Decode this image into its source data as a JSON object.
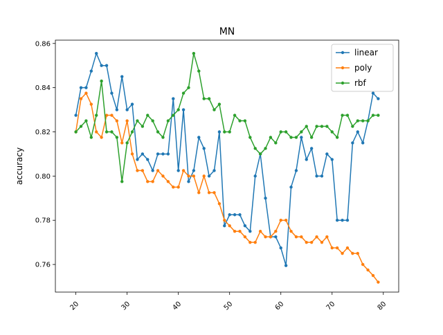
{
  "chart_data": {
    "type": "line",
    "title": "MN",
    "xlabel": "",
    "ylabel": "accuracy",
    "xlim": [
      16,
      83
    ],
    "ylim": [
      0.7475,
      0.8615
    ],
    "x_ticks": [
      20,
      30,
      40,
      50,
      60,
      70,
      80
    ],
    "y_ticks": [
      0.76,
      0.78,
      0.8,
      0.82,
      0.84,
      0.86
    ],
    "x_tick_labels": [
      "20",
      "30",
      "40",
      "50",
      "60",
      "70",
      "80"
    ],
    "y_tick_labels": [
      "0.76",
      "0.78",
      "0.80",
      "0.82",
      "0.84",
      "0.86"
    ],
    "x_tick_rotation": 45,
    "grid": false,
    "legend_position": "top-right",
    "x": [
      20,
      21,
      22,
      23,
      24,
      25,
      26,
      27,
      28,
      29,
      30,
      31,
      32,
      33,
      34,
      35,
      36,
      37,
      38,
      39,
      40,
      41,
      42,
      43,
      44,
      45,
      46,
      47,
      48,
      49,
      50,
      51,
      52,
      53,
      54,
      55,
      56,
      57,
      58,
      59,
      60,
      61,
      62,
      63,
      64,
      65,
      66,
      67,
      68,
      69,
      70,
      71,
      72,
      73,
      74,
      75,
      76,
      77,
      78,
      79
    ],
    "series": [
      {
        "name": "linear",
        "color": "#1f77b4",
        "values": [
          0.8275,
          0.84,
          0.84,
          0.8475,
          0.8555,
          0.85,
          0.85,
          0.8375,
          0.83,
          0.845,
          0.83,
          0.8325,
          0.8075,
          0.81,
          0.8075,
          0.8025,
          0.81,
          0.81,
          0.81,
          0.835,
          0.8025,
          0.83,
          0.7975,
          0.8025,
          0.8175,
          0.8125,
          0.8,
          0.8025,
          0.82,
          0.7775,
          0.7825,
          0.7825,
          0.7825,
          0.7775,
          0.775,
          0.8,
          0.81,
          0.79,
          0.7725,
          0.7725,
          0.7675,
          0.7595,
          0.795,
          0.8025,
          0.8175,
          0.8075,
          0.8125,
          0.8,
          0.8,
          0.81,
          0.8075,
          0.78,
          0.78,
          0.78,
          0.815,
          0.82,
          0.815,
          0.825,
          0.8375,
          0.835
        ]
      },
      {
        "name": "poly",
        "color": "#ff7f0e",
        "values": [
          0.82,
          0.835,
          0.8375,
          0.8325,
          0.82,
          0.8175,
          0.8275,
          0.8275,
          0.825,
          0.815,
          0.825,
          0.81,
          0.8025,
          0.8025,
          0.7975,
          0.7975,
          0.8025,
          0.8,
          0.7975,
          0.795,
          0.795,
          0.8025,
          0.8,
          0.8,
          0.7925,
          0.8,
          0.7925,
          0.7925,
          0.7875,
          0.78,
          0.7775,
          0.775,
          0.775,
          0.7725,
          0.77,
          0.77,
          0.775,
          0.7725,
          0.7725,
          0.775,
          0.78,
          0.78,
          0.775,
          0.7725,
          0.7725,
          0.77,
          0.77,
          0.7725,
          0.77,
          0.7725,
          0.7675,
          0.7675,
          0.765,
          0.7675,
          0.765,
          0.765,
          0.76,
          0.7575,
          0.755,
          0.752
        ]
      },
      {
        "name": "rbf",
        "color": "#2ca02c",
        "values": [
          0.82,
          0.8225,
          0.825,
          0.8175,
          0.8275,
          0.843,
          0.82,
          0.82,
          0.8175,
          0.7975,
          0.815,
          0.82,
          0.825,
          0.8225,
          0.8275,
          0.825,
          0.82,
          0.8175,
          0.825,
          0.8275,
          0.83,
          0.8375,
          0.84,
          0.8555,
          0.8475,
          0.835,
          0.835,
          0.83,
          0.8325,
          0.82,
          0.82,
          0.8275,
          0.825,
          0.825,
          0.8175,
          0.8125,
          0.81,
          0.8125,
          0.8175,
          0.815,
          0.82,
          0.82,
          0.8175,
          0.8175,
          0.82,
          0.8225,
          0.8175,
          0.8225,
          0.8225,
          0.8225,
          0.82,
          0.8175,
          0.8275,
          0.8275,
          0.8225,
          0.825,
          0.825,
          0.825,
          0.8275,
          0.8275
        ]
      }
    ]
  }
}
